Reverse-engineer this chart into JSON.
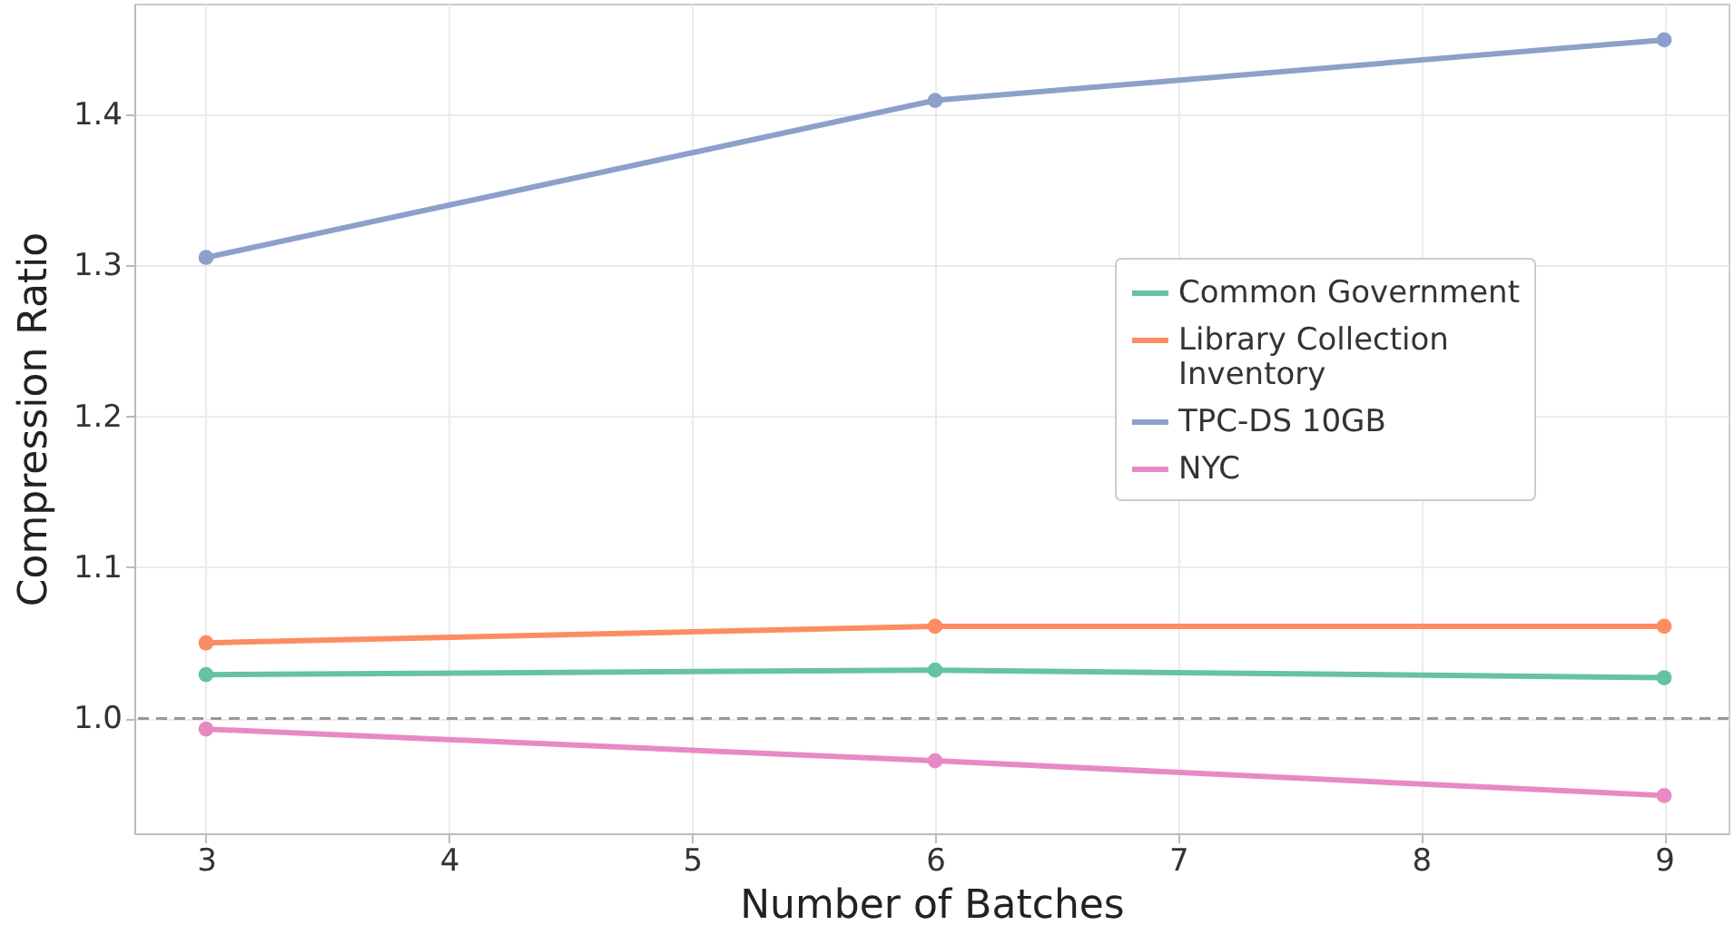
{
  "chart_data": {
    "type": "line",
    "xlabel": "Number of Batches",
    "ylabel": "Compression Ratio",
    "x": [
      3,
      6,
      9
    ],
    "series": [
      {
        "name": "Common Government",
        "color": "#66c2a5",
        "values": [
          1.029,
          1.032,
          1.027
        ]
      },
      {
        "name": "Library Collection Inventory",
        "color": "#fc8d62",
        "values": [
          1.05,
          1.061,
          1.061
        ]
      },
      {
        "name": "TPC-DS 10GB",
        "color": "#8da0cb",
        "values": [
          1.305,
          1.409,
          1.449
        ]
      },
      {
        "name": "NYC",
        "color": "#e78ac3",
        "values": [
          0.993,
          0.972,
          0.949
        ]
      }
    ],
    "xlim": [
      2.705,
      9.265
    ],
    "xticks": [
      3,
      4,
      5,
      6,
      7,
      8,
      9
    ],
    "ylim": [
      0.924,
      1.473
    ],
    "yticks": [
      {
        "value": 1,
        "label": "1.0"
      },
      1.1,
      1.2,
      1.3,
      1.4
    ],
    "ref_lines": [
      {
        "axis": "y",
        "value": 1,
        "color": "#999999",
        "line_style": "dashed"
      }
    ],
    "grid": true,
    "legend": "right",
    "marker": "circle",
    "line_style": "solid"
  }
}
